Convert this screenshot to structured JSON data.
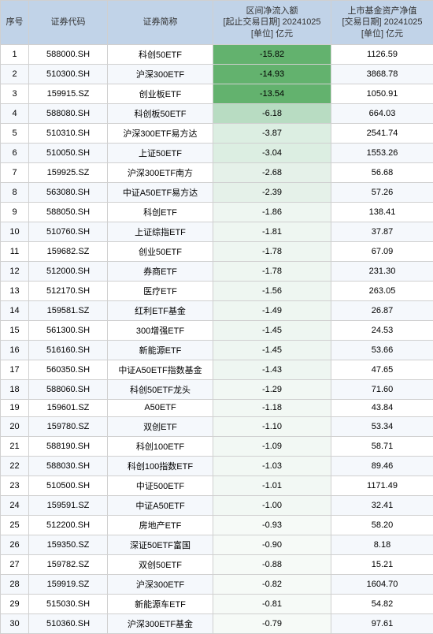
{
  "headers": {
    "seq": "序号",
    "code": "证券代码",
    "name": "证券简称",
    "flow_l1": "区间净流入额",
    "flow_l2": "[起止交易日期] 20241025",
    "flow_l3": "[单位] 亿元",
    "nav_l1": "上市基金资产净值",
    "nav_l2": "[交易日期] 20241025",
    "nav_l3": "[单位] 亿元"
  },
  "style": {
    "header_bg": "#c1d3e8",
    "row_even_bg": "#f5f8fc",
    "row_odd_bg": "#ffffff",
    "border_color": "#d0d0d0",
    "text_color": "#333333",
    "font_size": 11,
    "flow_min": -15.82,
    "flow_max": -0.79,
    "heat_colors": {
      "strong": "#63b26e",
      "mid": "#b8dcc2",
      "light": "#dceee2",
      "faint": "#eef6f1"
    }
  },
  "rows": [
    {
      "seq": 1,
      "code": "588000.SH",
      "name": "科创50ETF",
      "flow": -15.82,
      "nav": 1126.59,
      "heat": "#63b26e"
    },
    {
      "seq": 2,
      "code": "510300.SH",
      "name": "沪深300ETF",
      "flow": -14.93,
      "nav": 3868.78,
      "heat": "#63b26e"
    },
    {
      "seq": 3,
      "code": "159915.SZ",
      "name": "创业板ETF",
      "flow": -13.54,
      "nav": 1050.91,
      "heat": "#63b26e"
    },
    {
      "seq": 4,
      "code": "588080.SH",
      "name": "科创板50ETF",
      "flow": -6.18,
      "nav": 664.03,
      "heat": "#b8dcc2"
    },
    {
      "seq": 5,
      "code": "510310.SH",
      "name": "沪深300ETF易方达",
      "flow": -3.87,
      "nav": 2541.74,
      "heat": "#dceee2"
    },
    {
      "seq": 6,
      "code": "510050.SH",
      "name": "上证50ETF",
      "flow": -3.04,
      "nav": 1553.26,
      "heat": "#dceee2"
    },
    {
      "seq": 7,
      "code": "159925.SZ",
      "name": "沪深300ETF南方",
      "flow": -2.68,
      "nav": 56.68,
      "heat": "#e5f1e9"
    },
    {
      "seq": 8,
      "code": "563080.SH",
      "name": "中证A50ETF易方达",
      "flow": -2.39,
      "nav": 57.26,
      "heat": "#e5f1e9"
    },
    {
      "seq": 9,
      "code": "588050.SH",
      "name": "科创ETF",
      "flow": -1.86,
      "nav": 138.41,
      "heat": "#eef6f1"
    },
    {
      "seq": 10,
      "code": "510760.SH",
      "name": "上证综指ETF",
      "flow": -1.81,
      "nav": 37.87,
      "heat": "#eef6f1"
    },
    {
      "seq": 11,
      "code": "159682.SZ",
      "name": "创业50ETF",
      "flow": -1.78,
      "nav": 67.09,
      "heat": "#eef6f1"
    },
    {
      "seq": 12,
      "code": "512000.SH",
      "name": "券商ETF",
      "flow": -1.78,
      "nav": 231.3,
      "heat": "#eef6f1"
    },
    {
      "seq": 13,
      "code": "512170.SH",
      "name": "医疗ETF",
      "flow": -1.56,
      "nav": 263.05,
      "heat": "#eef6f1"
    },
    {
      "seq": 14,
      "code": "159581.SZ",
      "name": "红利ETF基金",
      "flow": -1.49,
      "nav": 26.87,
      "heat": "#eef6f1"
    },
    {
      "seq": 15,
      "code": "561300.SH",
      "name": "300增强ETF",
      "flow": -1.45,
      "nav": 24.53,
      "heat": "#eef6f1"
    },
    {
      "seq": 16,
      "code": "516160.SH",
      "name": "新能源ETF",
      "flow": -1.45,
      "nav": 53.66,
      "heat": "#eef6f1"
    },
    {
      "seq": 17,
      "code": "560350.SH",
      "name": "中证A50ETF指数基金",
      "flow": -1.43,
      "nav": 47.65,
      "heat": "#eef6f1"
    },
    {
      "seq": 18,
      "code": "588060.SH",
      "name": "科创50ETF龙头",
      "flow": -1.29,
      "nav": 71.6,
      "heat": "#f2f8f4"
    },
    {
      "seq": 19,
      "code": "159601.SZ",
      "name": "A50ETF",
      "flow": -1.18,
      "nav": 43.84,
      "heat": "#f2f8f4"
    },
    {
      "seq": 20,
      "code": "159780.SZ",
      "name": "双创ETF",
      "flow": -1.1,
      "nav": 53.34,
      "heat": "#f2f8f4"
    },
    {
      "seq": 21,
      "code": "588190.SH",
      "name": "科创100ETF",
      "flow": -1.09,
      "nav": 58.71,
      "heat": "#f2f8f4"
    },
    {
      "seq": 22,
      "code": "588030.SH",
      "name": "科创100指数ETF",
      "flow": -1.03,
      "nav": 89.46,
      "heat": "#f2f8f4"
    },
    {
      "seq": 23,
      "code": "510500.SH",
      "name": "中证500ETF",
      "flow": -1.01,
      "nav": 1171.49,
      "heat": "#f2f8f4"
    },
    {
      "seq": 24,
      "code": "159591.SZ",
      "name": "中证A50ETF",
      "flow": -1.0,
      "nav": 32.41,
      "heat": "#f2f8f4"
    },
    {
      "seq": 25,
      "code": "512200.SH",
      "name": "房地产ETF",
      "flow": -0.93,
      "nav": 58.2,
      "heat": "#f6faf7"
    },
    {
      "seq": 26,
      "code": "159350.SZ",
      "name": "深证50ETF富国",
      "flow": -0.9,
      "nav": 8.18,
      "heat": "#f6faf7"
    },
    {
      "seq": 27,
      "code": "159782.SZ",
      "name": "双创50ETF",
      "flow": -0.88,
      "nav": 15.21,
      "heat": "#f6faf7"
    },
    {
      "seq": 28,
      "code": "159919.SZ",
      "name": "沪深300ETF",
      "flow": -0.82,
      "nav": 1604.7,
      "heat": "#f6faf7"
    },
    {
      "seq": 29,
      "code": "515030.SH",
      "name": "新能源车ETF",
      "flow": -0.81,
      "nav": 54.82,
      "heat": "#f6faf7"
    },
    {
      "seq": 30,
      "code": "510360.SH",
      "name": "沪深300ETF基金",
      "flow": -0.79,
      "nav": 97.61,
      "heat": "#f6faf7"
    }
  ]
}
